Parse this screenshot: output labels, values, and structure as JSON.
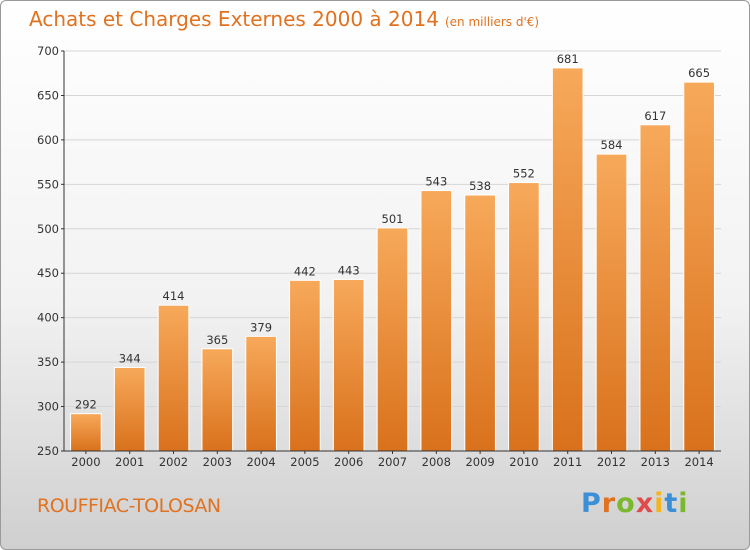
{
  "header": {
    "title": "Achats et Charges Externes 2000 à 2014",
    "unit": "(en milliers d'€)"
  },
  "footer": {
    "place": "ROUFFIAC-TOLOSAN",
    "brand": "Proxiti"
  },
  "colors": {
    "accent": "#e1721f",
    "bar_top": "#f7a95a",
    "bar_bottom": "#d9711c",
    "bar_edge": "#ffffff"
  },
  "chart_data": {
    "type": "bar",
    "title": "Achats et Charges Externes 2000 à 2014",
    "subtitle": "(en milliers d'€)",
    "xlabel": "",
    "ylabel": "",
    "categories": [
      "2000",
      "2001",
      "2002",
      "2003",
      "2004",
      "2005",
      "2006",
      "2007",
      "2008",
      "2009",
      "2010",
      "2011",
      "2012",
      "2013",
      "2014"
    ],
    "values": [
      292,
      344,
      414,
      365,
      379,
      442,
      443,
      501,
      543,
      538,
      552,
      681,
      584,
      617,
      665
    ],
    "ylim": [
      250,
      700
    ],
    "yticks": [
      250,
      300,
      350,
      400,
      450,
      500,
      550,
      600,
      650,
      700
    ],
    "grid": true,
    "data_labels": true
  }
}
